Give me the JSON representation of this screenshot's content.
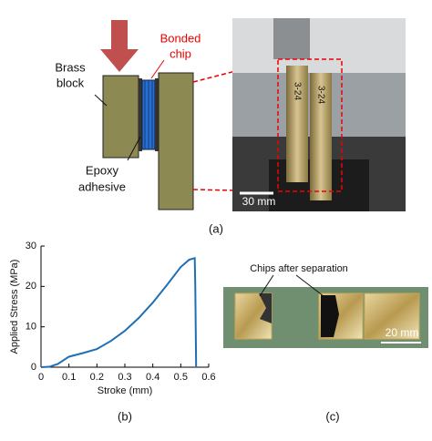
{
  "panel_a": {
    "brass_block": [
      "Brass",
      "block"
    ],
    "bonded_chip": [
      "Bonded",
      "chip"
    ],
    "epoxy_adhesive": [
      "Epoxy",
      "adhesive"
    ],
    "photo_chip_labels": [
      "3-24",
      "3-24"
    ],
    "scale_bar": "30 mm",
    "caption": "(a)"
  },
  "chart_data": {
    "type": "line",
    "x_label": "Stroke (mm)",
    "y_label": "Applied Stress (MPa)",
    "x": [
      0,
      0.03,
      0.06,
      0.1,
      0.15,
      0.2,
      0.25,
      0.3,
      0.35,
      0.4,
      0.45,
      0.5,
      0.53,
      0.55,
      0.552,
      0.555
    ],
    "series": [
      {
        "color": "#1f6fb5",
        "values": [
          0,
          0.1,
          0.8,
          2.6,
          3.5,
          4.5,
          6.5,
          9,
          12.2,
          16,
          20.3,
          24.8,
          26.6,
          27,
          20,
          0
        ]
      }
    ],
    "xlim": [
      0,
      0.6
    ],
    "xticks": [
      0,
      0.1,
      0.2,
      0.3,
      0.4,
      0.5,
      0.6
    ],
    "ylim": [
      0,
      30
    ],
    "yticks": [
      0,
      10,
      20,
      30
    ],
    "grid": false,
    "caption": "(b)"
  },
  "panel_c": {
    "label": "Chips after separation",
    "scale_bar": "20 mm",
    "caption": "(c)"
  }
}
